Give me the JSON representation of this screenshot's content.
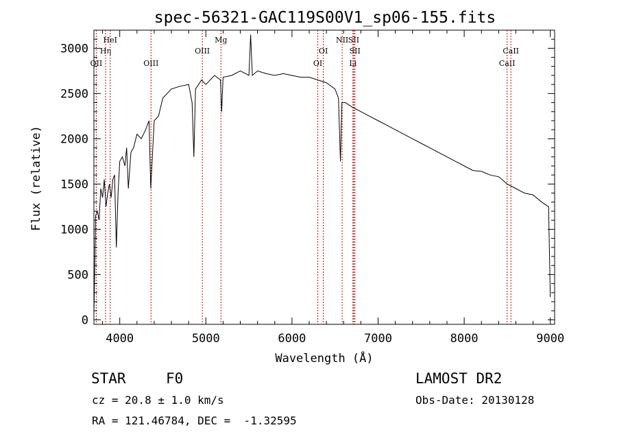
{
  "chart_data": {
    "type": "line",
    "title": "spec-56321-GAC119S00V1_sp06-155.fits",
    "xlabel": "Wavelength (Å)",
    "ylabel": "Flux (relative)",
    "xlim": [
      3700,
      9050
    ],
    "ylim": [
      -50,
      3200
    ],
    "xticks": [
      4000,
      5000,
      6000,
      7000,
      8000,
      9000
    ],
    "xtick_labels": [
      "4000",
      "5000",
      "6000",
      "7000",
      "8000",
      "9000"
    ],
    "yticks": [
      0,
      500,
      1000,
      1500,
      2000,
      2500,
      3000
    ],
    "ytick_labels": [
      "0",
      "500",
      "1000",
      "1500",
      "2000",
      "2500",
      "3000"
    ],
    "grid": false,
    "series": [
      {
        "color": "#000000",
        "x": [
          3700,
          3720,
          3740,
          3760,
          3780,
          3800,
          3820,
          3840,
          3860,
          3880,
          3900,
          3920,
          3940,
          3960,
          3980,
          4000,
          4030,
          4060,
          4080,
          4100,
          4130,
          4160,
          4200,
          4250,
          4300,
          4340,
          4360,
          4400,
          4450,
          4500,
          4600,
          4700,
          4800,
          4840,
          4861,
          4880,
          4950,
          5000,
          5100,
          5170,
          5183,
          5200,
          5300,
          5400,
          5500,
          5520,
          5540,
          5600,
          5700,
          5800,
          5900,
          6000,
          6100,
          6200,
          6300,
          6400,
          6500,
          6540,
          6563,
          6580,
          6620,
          6700,
          6800,
          6900,
          7000,
          7100,
          7200,
          7300,
          7400,
          7500,
          7600,
          7700,
          7800,
          7900,
          8000,
          8100,
          8200,
          8300,
          8400,
          8500,
          8600,
          8700,
          8800,
          8900,
          8980,
          9000
        ],
        "y": [
          50,
          1150,
          1200,
          1100,
          1450,
          1350,
          1550,
          1250,
          1400,
          1500,
          1350,
          1550,
          1600,
          800,
          1400,
          1750,
          1800,
          1700,
          1900,
          1450,
          1850,
          1900,
          2050,
          2000,
          2100,
          2200,
          1450,
          2200,
          2250,
          2450,
          2550,
          2580,
          2600,
          2400,
          1800,
          2550,
          2650,
          2600,
          2700,
          2650,
          2300,
          2680,
          2700,
          2750,
          2700,
          3150,
          2700,
          2750,
          2720,
          2700,
          2720,
          2700,
          2680,
          2680,
          2650,
          2620,
          2550,
          2450,
          1750,
          2400,
          2400,
          2350,
          2300,
          2250,
          2200,
          2150,
          2100,
          2050,
          2000,
          1950,
          1900,
          1850,
          1800,
          1750,
          1700,
          1650,
          1640,
          1600,
          1580,
          1500,
          1450,
          1400,
          1380,
          1300,
          1250,
          250
        ]
      }
    ],
    "line_markers": [
      {
        "label": "OII",
        "x": 3727,
        "row": 3
      },
      {
        "label": "HeI",
        "x": 3889,
        "row": 1
      },
      {
        "label": "Hη",
        "x": 3835,
        "row": 2
      },
      {
        "label": "OIII",
        "x": 4363,
        "row": 3
      },
      {
        "label": "OIII",
        "x": 4959,
        "row": 2
      },
      {
        "label": "Mg",
        "x": 5175,
        "row": 1
      },
      {
        "label": "OI",
        "x": 6300,
        "row": 3
      },
      {
        "label": "OI",
        "x": 6364,
        "row": 2
      },
      {
        "label": "NII",
        "x": 6583,
        "row": 1
      },
      {
        "label": "SII",
        "x": 6717,
        "row": 1
      },
      {
        "label": "SII",
        "x": 6731,
        "row": 2
      },
      {
        "label": "Li",
        "x": 6708,
        "row": 3
      },
      {
        "label": "CaII",
        "x": 8498,
        "row": 3
      },
      {
        "label": "CaII",
        "x": 8542,
        "row": 2
      }
    ]
  },
  "footer": {
    "class_label": "STAR",
    "subclass": "F0",
    "survey": "LAMOST DR2",
    "cz_text": "cz = 20.8 ± 1.0 km/s",
    "obs_date_text": "Obs-Date: 20130128",
    "radec_text": "RA = 121.46784, DEC =  -1.32595"
  }
}
